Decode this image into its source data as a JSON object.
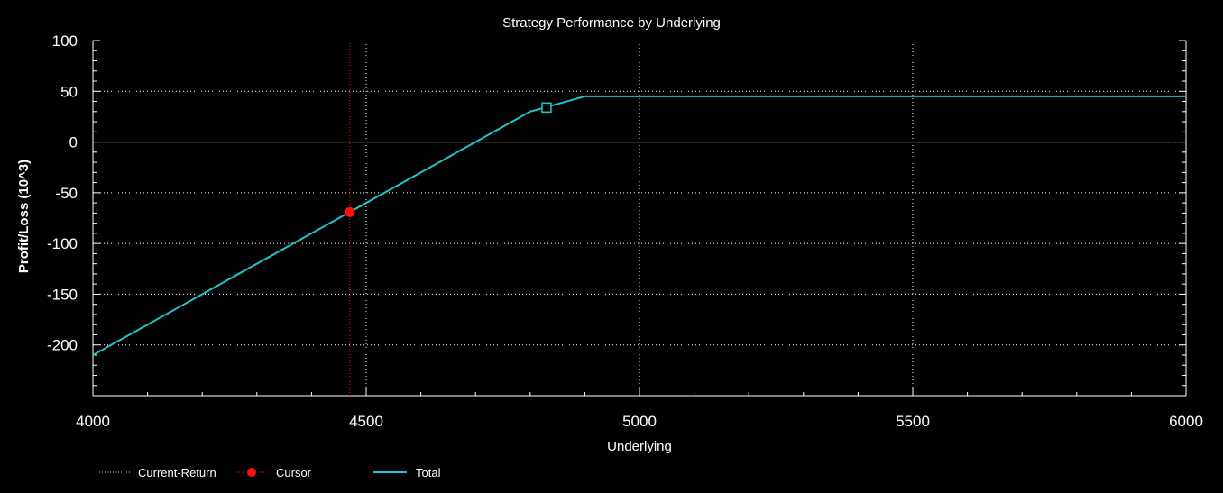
{
  "chart_data": {
    "type": "line",
    "title": "Strategy Performance by Underlying",
    "xlabel": "Underlying",
    "ylabel": "Profit/Loss (10^3)",
    "xlim": [
      4000,
      6000
    ],
    "ylim": [
      -250,
      100
    ],
    "x_ticks": [
      4000,
      4500,
      5000,
      5500,
      6000
    ],
    "y_ticks": [
      100,
      50,
      0,
      -50,
      -100,
      -150,
      -200
    ],
    "x_tick_labels": [
      "4000",
      "4500",
      "5000",
      "5500",
      "6000"
    ],
    "y_tick_labels": [
      "100",
      "50",
      "0",
      "-50",
      "-100",
      "-150",
      "-200"
    ],
    "grid": true,
    "legend_position": "bottom-left",
    "series": [
      {
        "name": "Total",
        "color": "#22c4cc",
        "x": [
          4000,
          4800,
          4900,
          6000
        ],
        "y": [
          -210,
          30,
          45,
          45
        ]
      }
    ],
    "current_return": {
      "name": "Current-Return",
      "color": "#e8e0a0",
      "y": 0
    },
    "cursor": {
      "name": "Cursor",
      "color": "#ff1010",
      "x": 4470,
      "y": -69
    },
    "current_marker": {
      "x": 4830,
      "y": 34
    }
  }
}
